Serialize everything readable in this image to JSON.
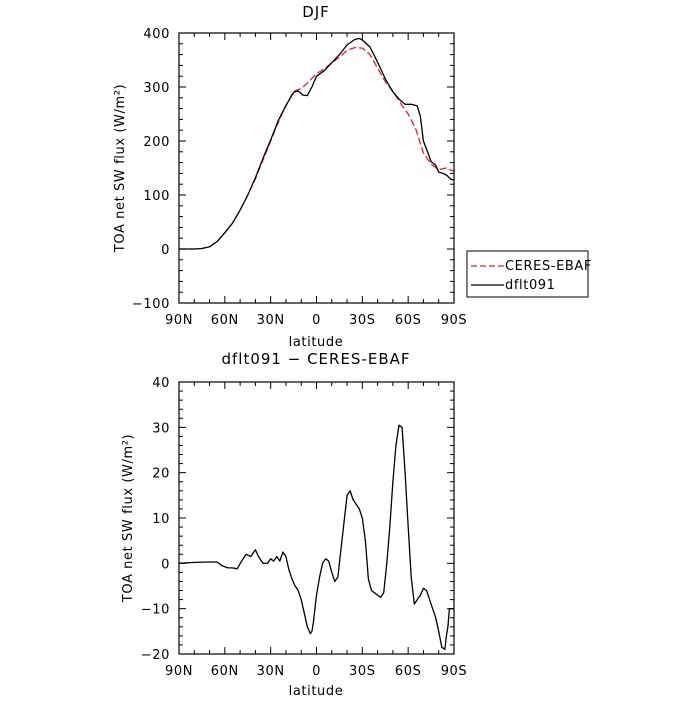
{
  "chart_data": [
    {
      "type": "line",
      "title": "DJF",
      "xlabel": "latitude",
      "ylabel": "TOA net SW flux (W/m²)",
      "xlim": [
        90,
        -90
      ],
      "ylim": [
        -100,
        400
      ],
      "x_ticks": [
        {
          "value": 90,
          "label": "90N"
        },
        {
          "value": 60,
          "label": "60N"
        },
        {
          "value": 30,
          "label": "30N"
        },
        {
          "value": 0,
          "label": "0"
        },
        {
          "value": -30,
          "label": "30S"
        },
        {
          "value": -60,
          "label": "60S"
        },
        {
          "value": -90,
          "label": "90S"
        }
      ],
      "y_ticks": [
        -100,
        0,
        100,
        200,
        300,
        400
      ],
      "legend": "right",
      "series": [
        {
          "name": "CERES-EBAF",
          "color": "#e8202a",
          "style": "dashed",
          "x": [
            90,
            80,
            75,
            70,
            65,
            60,
            55,
            50,
            45,
            40,
            35,
            30,
            25,
            20,
            15,
            10,
            5,
            0,
            -5,
            -10,
            -15,
            -20,
            -25,
            -30,
            -35,
            -40,
            -45,
            -50,
            -55,
            -60,
            -65,
            -70,
            -75,
            -80,
            -85,
            -88,
            -90
          ],
          "y": [
            0,
            0,
            1,
            4,
            14,
            30,
            48,
            72,
            100,
            130,
            165,
            200,
            235,
            265,
            292,
            297,
            310,
            325,
            333,
            345,
            355,
            368,
            373,
            372,
            360,
            335,
            310,
            292,
            270,
            250,
            222,
            178,
            157,
            147,
            150,
            146,
            145
          ]
        },
        {
          "name": "dflt091",
          "color": "#000000",
          "style": "solid",
          "x": [
            90,
            80,
            75,
            70,
            65,
            60,
            55,
            50,
            45,
            40,
            35,
            30,
            25,
            20,
            15,
            12,
            9,
            6,
            3,
            0,
            -5,
            -10,
            -15,
            -20,
            -25,
            -28,
            -30,
            -35,
            -40,
            -45,
            -50,
            -55,
            -58,
            -62,
            -66,
            -68,
            -70,
            -73,
            -75,
            -78,
            -80,
            -83,
            -85,
            -88,
            -90
          ],
          "y": [
            0,
            0,
            1,
            4,
            14,
            30,
            48,
            72,
            100,
            132,
            168,
            202,
            238,
            266,
            290,
            293,
            285,
            284,
            300,
            320,
            330,
            345,
            360,
            378,
            388,
            390,
            387,
            374,
            346,
            315,
            291,
            275,
            268,
            268,
            265,
            245,
            200,
            178,
            162,
            155,
            142,
            140,
            137,
            129,
            128
          ]
        }
      ]
    },
    {
      "type": "line",
      "title": "dflt091 − CERES-EBAF",
      "xlabel": "latitude",
      "ylabel": "TOA net SW flux (W/m²)",
      "xlim": [
        90,
        -90
      ],
      "ylim": [
        -20,
        40
      ],
      "x_ticks": [
        {
          "value": 90,
          "label": "90N"
        },
        {
          "value": 60,
          "label": "60N"
        },
        {
          "value": 30,
          "label": "30N"
        },
        {
          "value": 0,
          "label": "0"
        },
        {
          "value": -30,
          "label": "30S"
        },
        {
          "value": -60,
          "label": "60S"
        },
        {
          "value": -90,
          "label": "90S"
        }
      ],
      "y_ticks": [
        -20,
        -10,
        0,
        10,
        20,
        30,
        40
      ],
      "series": [
        {
          "color": "#000000",
          "style": "solid",
          "x": [
            90,
            80,
            70,
            65,
            62,
            58,
            55,
            52,
            49,
            46,
            43,
            40,
            38,
            35,
            32,
            30,
            28,
            26,
            24,
            22,
            20,
            18,
            16,
            14,
            12,
            10,
            8,
            6,
            4,
            3,
            2,
            0,
            -2,
            -4,
            -6,
            -8,
            -10,
            -12,
            -14,
            -16,
            -18,
            -20,
            -22,
            -24,
            -26,
            -28,
            -30,
            -32,
            -34,
            -36,
            -38,
            -40,
            -42,
            -44,
            -46,
            -48,
            -50,
            -52,
            -54,
            -56,
            -58,
            -60,
            -62,
            -64,
            -66,
            -68,
            -70,
            -72,
            -74,
            -76,
            -78,
            -80,
            -82,
            -84,
            -85,
            -86,
            -87,
            -88,
            -90
          ],
          "y": [
            0,
            0.2,
            0.3,
            0.3,
            -0.5,
            -1,
            -1,
            -1.2,
            0.5,
            2,
            1.5,
            3,
            1.5,
            0,
            0,
            1,
            0.5,
            1.5,
            0.5,
            2.5,
            1.5,
            -1.5,
            -3.5,
            -5,
            -6,
            -8,
            -11,
            -14,
            -15.5,
            -15,
            -13,
            -7,
            -3,
            0,
            1,
            0.5,
            -2,
            -4,
            -3,
            3,
            9,
            15,
            16,
            14,
            13,
            12,
            10,
            5,
            -3.5,
            -6,
            -6.5,
            -7,
            -7.5,
            -6.5,
            0,
            8,
            18,
            26,
            30.5,
            30,
            20,
            8,
            -3,
            -9,
            -8,
            -7,
            -5.5,
            -6,
            -8,
            -10,
            -12,
            -15,
            -18.5,
            -19,
            -16,
            -14,
            -10,
            -10,
            -10
          ]
        }
      ]
    }
  ]
}
